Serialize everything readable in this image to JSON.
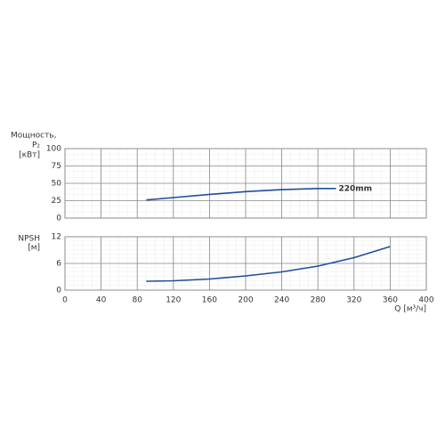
{
  "chart_data": [
    {
      "type": "line",
      "ylabel_lines": [
        "Мощность,",
        "P₂",
        "[кВт]"
      ],
      "x": [
        90,
        120,
        160,
        200,
        240,
        280,
        300
      ],
      "series": [
        {
          "name": "220mm",
          "color": "#1f4e9c",
          "values": [
            26,
            29.5,
            34,
            38,
            41,
            42.5,
            42.5
          ]
        }
      ],
      "xlim": [
        0,
        400
      ],
      "xticks": [
        0,
        40,
        80,
        120,
        160,
        200,
        240,
        280,
        320,
        360,
        400
      ],
      "ylim": [
        0,
        100
      ],
      "yticks": [
        0,
        25,
        50,
        75,
        100
      ],
      "grid": true
    },
    {
      "type": "line",
      "ylabel_lines": [
        "NPSH",
        "[м]"
      ],
      "xlabel": "Q [м³/ч]",
      "x": [
        90,
        120,
        160,
        200,
        240,
        280,
        320,
        360
      ],
      "series": [
        {
          "color": "#1f4e9c",
          "values": [
            2,
            2.1,
            2.5,
            3.2,
            4.1,
            5.4,
            7.3,
            9.8
          ]
        }
      ],
      "xlim": [
        0,
        400
      ],
      "xticks": [
        0,
        40,
        80,
        120,
        160,
        200,
        240,
        280,
        320,
        360,
        400
      ],
      "ylim": [
        0,
        12
      ],
      "yticks": [
        0,
        6,
        12
      ],
      "grid": true
    }
  ]
}
